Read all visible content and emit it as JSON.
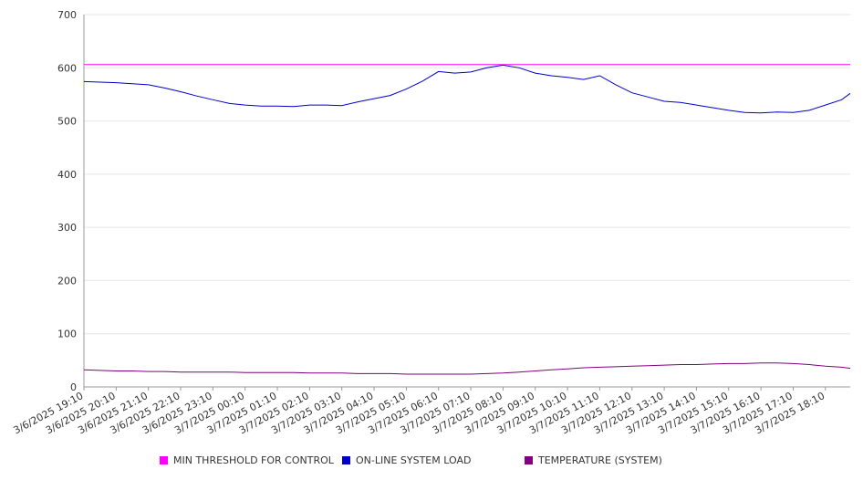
{
  "chart_data": {
    "type": "line",
    "ylim": [
      0,
      700
    ],
    "y_ticks": [
      "0",
      "100",
      "200",
      "300",
      "400",
      "500",
      "600",
      "700"
    ],
    "x_tick_labels": [
      "3/6/2025 19:10",
      "3/6/2025 20:10",
      "3/6/2025 21:10",
      "3/6/2025 22:10",
      "3/6/2025 23:10",
      "3/7/2025 00:10",
      "3/7/2025 01:10",
      "3/7/2025 02:10",
      "3/7/2025 03:10",
      "3/7/2025 04:10",
      "3/7/2025 05:10",
      "3/7/2025 06:10",
      "3/7/2025 07:10",
      "3/7/2025 08:10",
      "3/7/2025 09:10",
      "3/7/2025 10:10",
      "3/7/2025 11:10",
      "3/7/2025 12:10",
      "3/7/2025 13:10",
      "3/7/2025 14:10",
      "3/7/2025 15:10",
      "3/7/2025 16:10",
      "3/7/2025 17:10",
      "3/7/2025 18:10"
    ],
    "grid": true,
    "legend_position": "bottom",
    "series": [
      {
        "name": "MIN THRESHOLD FOR CONTROL",
        "color": "#ff00ff",
        "x": [
          0,
          23.77
        ],
        "values": [
          606,
          606
        ]
      },
      {
        "name": "ON-LINE SYSTEM LOAD",
        "color": "#0000cc",
        "x": [
          0,
          0.5,
          1,
          1.5,
          2,
          2.5,
          3,
          3.5,
          4,
          4.5,
          5,
          5.5,
          6,
          6.5,
          7,
          7.5,
          8,
          8.5,
          9,
          9.5,
          10,
          10.5,
          11,
          11.5,
          12,
          12.5,
          13,
          13.5,
          14,
          14.5,
          15,
          15.5,
          16,
          16.5,
          17,
          17.5,
          18,
          18.5,
          19,
          19.5,
          20,
          20.5,
          21,
          21.5,
          22,
          22.5,
          23,
          23.5,
          23.77
        ],
        "values": [
          574,
          573,
          572,
          570,
          568,
          562,
          555,
          547,
          540,
          533,
          530,
          528,
          528,
          527,
          530,
          530,
          529,
          536,
          542,
          548,
          560,
          575,
          593,
          590,
          592,
          600,
          605,
          600,
          590,
          585,
          582,
          578,
          585,
          568,
          553,
          545,
          537,
          535,
          530,
          525,
          520,
          516,
          515,
          517,
          516,
          520,
          530,
          540,
          552
        ]
      },
      {
        "name": "TEMPERATURE (SYSTEM)",
        "color": "#800080",
        "x": [
          0,
          0.5,
          1,
          1.5,
          2,
          2.5,
          3,
          3.5,
          4,
          4.5,
          5,
          5.5,
          6,
          6.5,
          7,
          7.5,
          8,
          8.5,
          9,
          9.5,
          10,
          10.5,
          11,
          11.5,
          12,
          12.5,
          13,
          13.5,
          14,
          14.5,
          15,
          15.5,
          16,
          16.5,
          17,
          17.5,
          18,
          18.5,
          19,
          19.5,
          20,
          20.5,
          21,
          21.5,
          22,
          22.5,
          23,
          23.5,
          23.77
        ],
        "values": [
          32,
          31,
          30,
          30,
          29,
          29,
          28,
          28,
          28,
          28,
          27,
          27,
          27,
          27,
          26,
          26,
          26,
          25,
          25,
          25,
          24,
          24,
          24,
          24,
          24,
          25,
          26,
          28,
          30,
          32,
          34,
          36,
          37,
          38,
          39,
          40,
          41,
          42,
          42,
          43,
          44,
          44,
          45,
          45,
          44,
          42,
          39,
          37,
          35
        ]
      }
    ]
  }
}
